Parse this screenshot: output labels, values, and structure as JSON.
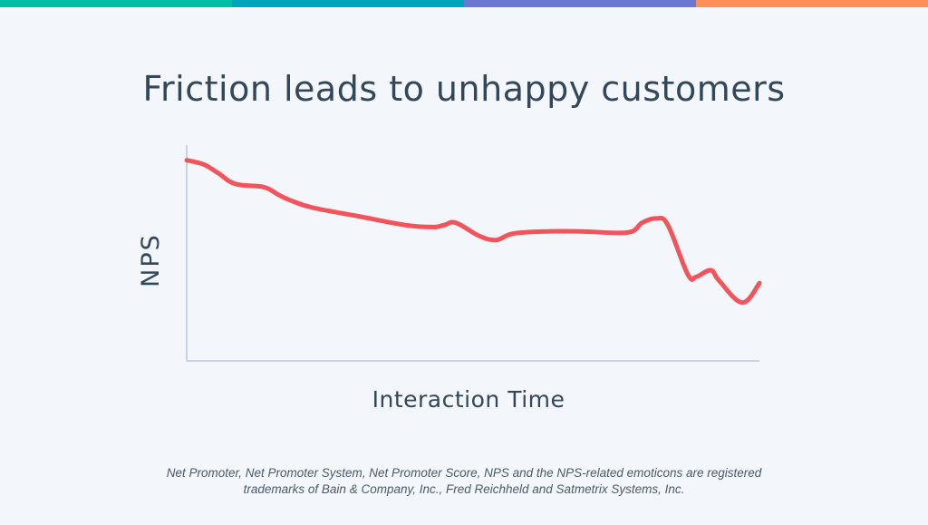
{
  "colors": {
    "top_bar": [
      "#00bda5",
      "#00a4bd",
      "#6a78d1",
      "#ff8f59"
    ],
    "line": "#f2545b",
    "axis": "#c9d2de",
    "text": "#33475b"
  },
  "title": "Friction leads to unhappy customers",
  "chart_data": {
    "type": "line",
    "title": "Friction leads to unhappy customers",
    "xlabel": "Interaction Time",
    "ylabel": "NPS",
    "xlim": [
      0,
      100
    ],
    "ylim": [
      0,
      100
    ],
    "grid": false,
    "legend": "none",
    "series": [
      {
        "name": "NPS",
        "x": [
          0,
          3,
          5.5,
          8.5,
          13.5,
          16,
          18,
          22,
          30,
          38,
          43,
          45,
          47,
          51,
          54,
          57,
          63,
          69,
          77,
          79.5,
          82,
          84,
          87.5,
          89,
          91.5,
          93,
          97,
          100
        ],
        "y": [
          93,
          91,
          87,
          82,
          80.5,
          77,
          74.5,
          71,
          67,
          63,
          62,
          63,
          64,
          58,
          56,
          59,
          60,
          60,
          59.5,
          64,
          66,
          63,
          40,
          39,
          42,
          37,
          27,
          36
        ]
      }
    ]
  },
  "footnote": {
    "line1": "Net Promoter, Net Promoter System, Net Promoter Score, NPS and the NPS-related emoticons are registered",
    "line2": "trademarks of Bain & Company, Inc., Fred Reichheld and Satmetrix Systems, Inc."
  }
}
